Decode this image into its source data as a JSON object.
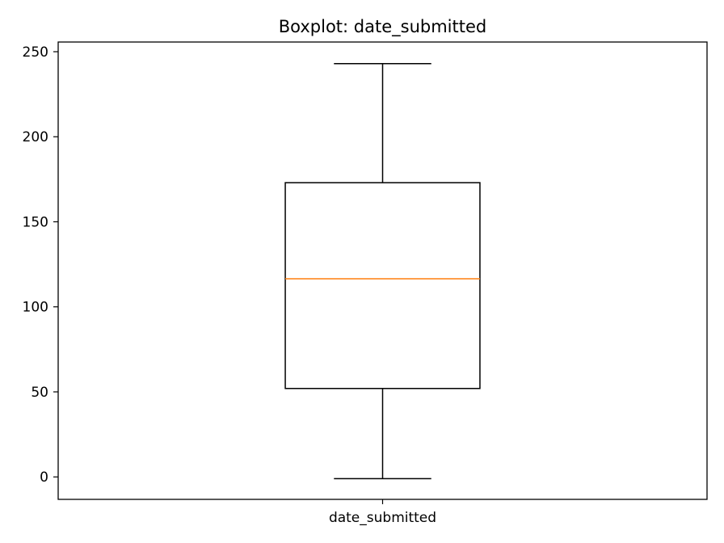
{
  "chart_data": {
    "type": "box",
    "title": "Boxplot: date_submitted",
    "categories": [
      "date_submitted"
    ],
    "boxes": [
      {
        "label": "date_submitted",
        "whisker_low": -1,
        "q1": 52,
        "median": 116.5,
        "q3": 173,
        "whisker_high": 243
      }
    ],
    "ylim": [
      -13.2,
      255.7
    ],
    "yticks": [
      0,
      50,
      100,
      150,
      200,
      250
    ],
    "xlabel": "",
    "ylabel": "",
    "grid": false,
    "colors": {
      "box": "#000000",
      "median": "#ff7f0e",
      "whisker": "#000000"
    }
  }
}
